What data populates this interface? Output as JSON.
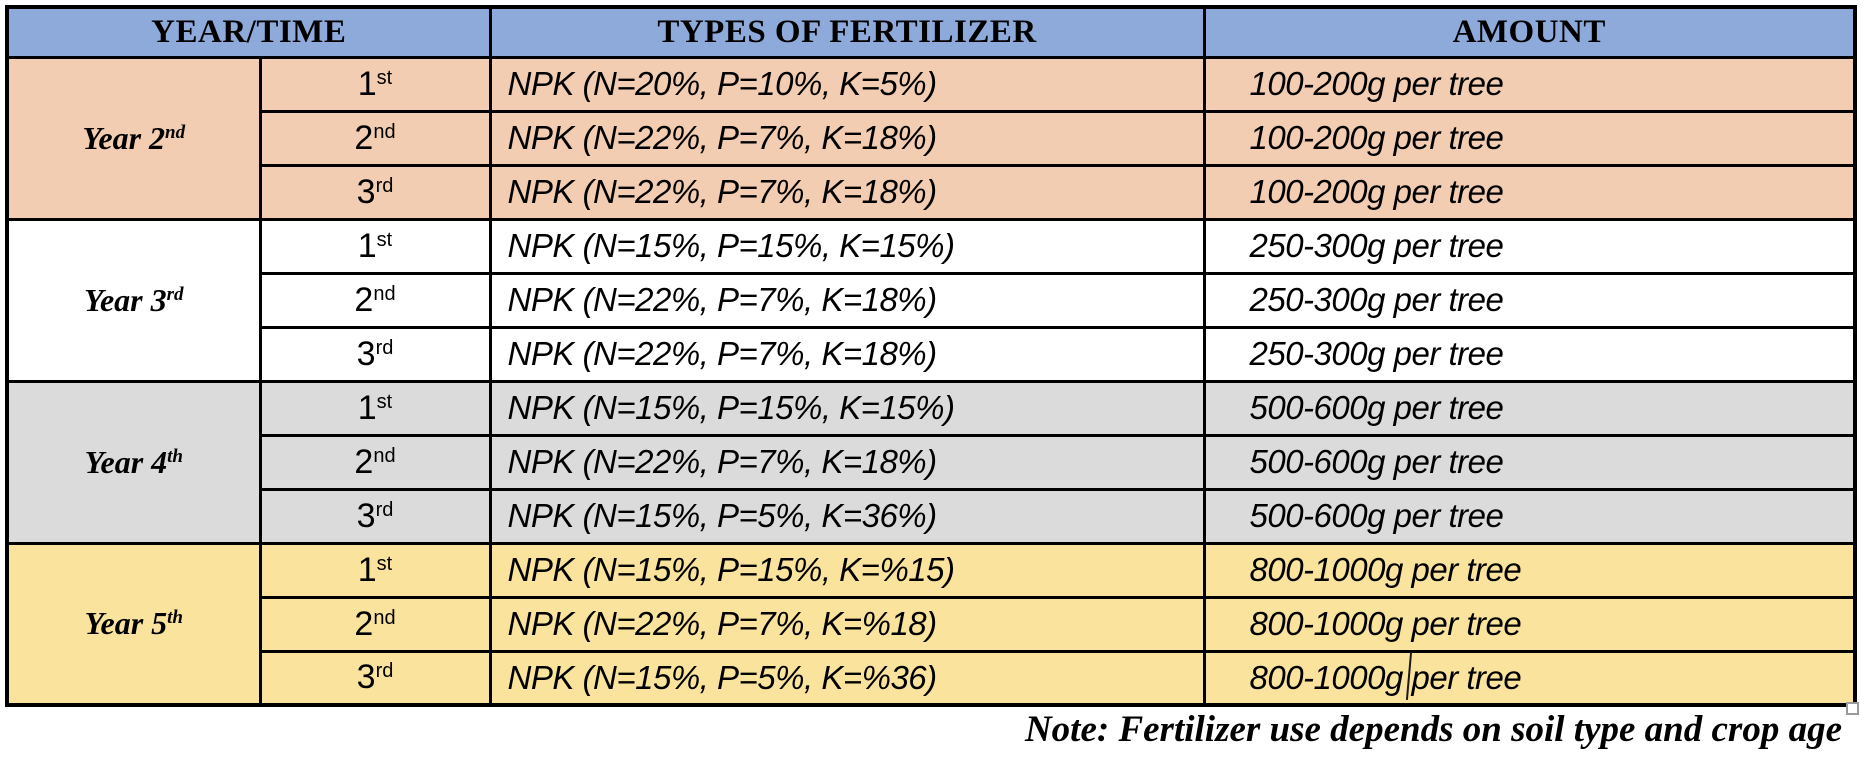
{
  "table": {
    "headers": {
      "year_time": "YEAR/TIME",
      "types": "TYPES OF FERTILIZER",
      "amount": "AMOUNT"
    },
    "groups": [
      {
        "year_base": "Year 2",
        "year_ord": "nd",
        "bg": "#F2CDB1",
        "rows": [
          {
            "time_num": "1",
            "time_ord": "st",
            "type": "NPK (N=20%, P=10%, K=5%)",
            "amount": "100-200g per tree"
          },
          {
            "time_num": "2",
            "time_ord": "nd",
            "type": "NPK (N=22%, P=7%, K=18%)",
            "amount": "100-200g per tree"
          },
          {
            "time_num": "3",
            "time_ord": "rd",
            "type": "NPK (N=22%, P=7%, K=18%)",
            "amount": "100-200g per tree"
          }
        ]
      },
      {
        "year_base": "Year 3",
        "year_ord": "rd",
        "bg": "#FFFFFF",
        "rows": [
          {
            "time_num": "1",
            "time_ord": "st",
            "type": "NPK (N=15%, P=15%, K=15%)",
            "amount": "250-300g per tree"
          },
          {
            "time_num": "2",
            "time_ord": "nd",
            "type": "NPK (N=22%, P=7%, K=18%)",
            "amount": "250-300g per tree"
          },
          {
            "time_num": "3",
            "time_ord": "rd",
            "type": "NPK (N=22%, P=7%, K=18%)",
            "amount": "250-300g per tree"
          }
        ]
      },
      {
        "year_base": "Year 4",
        "year_ord": "th",
        "bg": "#DBDBDB",
        "rows": [
          {
            "time_num": "1",
            "time_ord": "st",
            "type": "NPK (N=15%, P=15%, K=15%)",
            "amount": "500-600g per tree"
          },
          {
            "time_num": "2",
            "time_ord": "nd",
            "type": "NPK (N=22%, P=7%, K=18%)",
            "amount": "500-600g per tree"
          },
          {
            "time_num": "3",
            "time_ord": "rd",
            "type": "NPK (N=15%, P=5%, K=36%)",
            "amount": "500-600g per tree"
          }
        ]
      },
      {
        "year_base": "Year 5",
        "year_ord": "th",
        "bg": "#FAE49D",
        "rows": [
          {
            "time_num": "1",
            "time_ord": "st",
            "type": "NPK (N=15%, P=15%, K=%15)",
            "amount": "800-1000g per tree"
          },
          {
            "time_num": "2",
            "time_ord": "nd",
            "type": "NPK (N=22%, P=7%, K=%18)",
            "amount": "800-1000g per tree"
          },
          {
            "time_num": "3",
            "time_ord": "rd",
            "type": "NPK (N=15%, P=5%, K=%36)",
            "amount": "800-1000g per tree"
          }
        ]
      }
    ]
  },
  "note": "Note: Fertilizer use depends on soil type and crop age",
  "colors": {
    "header_bg": "#8EAADB",
    "year2_bg": "#F2CDB1",
    "year3_bg": "#FFFFFF",
    "year4_bg": "#DBDBDB",
    "year5_bg": "#FAE49D",
    "border": "#000000",
    "text": "#000000"
  }
}
